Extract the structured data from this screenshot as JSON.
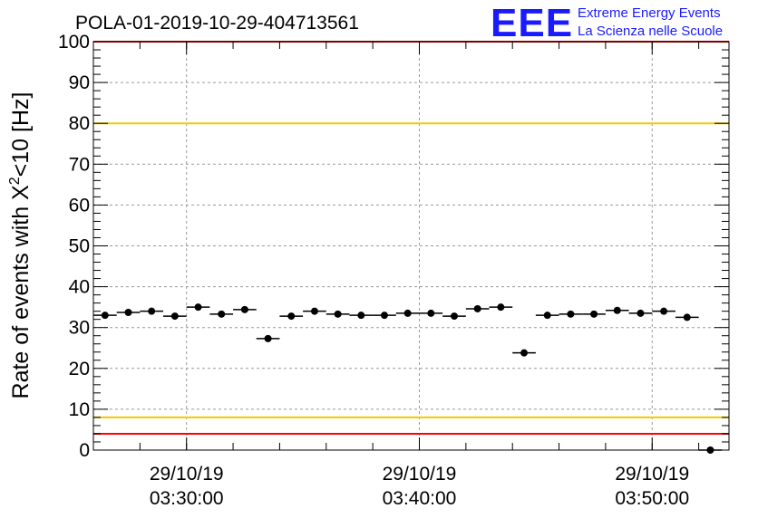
{
  "chart_data": {
    "type": "scatter",
    "title": "POLA-01-2019-10-29-404713561",
    "ylabel_prefix": "Rate of events with X",
    "ylabel_sup": "2",
    "ylabel_suffix": "<10 [Hz]",
    "xlabel": "",
    "ylim": [
      0,
      100
    ],
    "xlim_minutes": [
      0,
      27.3
    ],
    "y_ticks": [
      "0",
      "10",
      "20",
      "30",
      "40",
      "50",
      "60",
      "70",
      "80",
      "90",
      "100"
    ],
    "x_ticks": [
      {
        "minute": 4,
        "date": "29/10/19",
        "time": "03:30:00"
      },
      {
        "minute": 14,
        "date": "29/10/19",
        "time": "03:40:00"
      },
      {
        "minute": 24,
        "date": "29/10/19",
        "time": "03:50:00"
      }
    ],
    "x_minor_tick_step_minutes": 2,
    "grid": true,
    "series": [
      {
        "x_minutes": [
          0.5,
          1.5,
          2.5,
          3.5,
          4.5,
          5.5,
          6.5,
          7.5,
          8.5,
          9.5,
          10.5,
          11.5,
          12.5,
          13.5,
          14.5,
          15.5,
          16.5,
          17.5,
          18.5,
          19.5,
          20.5,
          21.5,
          22.5,
          23.5,
          24.5,
          25.5,
          26.5
        ],
        "values": [
          33,
          33.7,
          34,
          32.8,
          35,
          33.3,
          34.4,
          27.3,
          32.8,
          34,
          33.3,
          33,
          33,
          33.5,
          33.5,
          32.8,
          34.6,
          35,
          23.8,
          33,
          33.3,
          33.3,
          34.2,
          33.5,
          34,
          32.5,
          0
        ],
        "color": "#000000"
      }
    ],
    "reference_lines": [
      {
        "y": 100,
        "color": "#ff0000"
      },
      {
        "y": 80,
        "color": "#f2c800"
      },
      {
        "y": 8,
        "color": "#f2c800"
      },
      {
        "y": 4,
        "color": "#ff0000"
      }
    ]
  },
  "logo": {
    "mark": "EEE",
    "line1": "Extreme Energy Events",
    "line2": "La Scienza nelle Scuole",
    "color": "#1a1aff"
  }
}
